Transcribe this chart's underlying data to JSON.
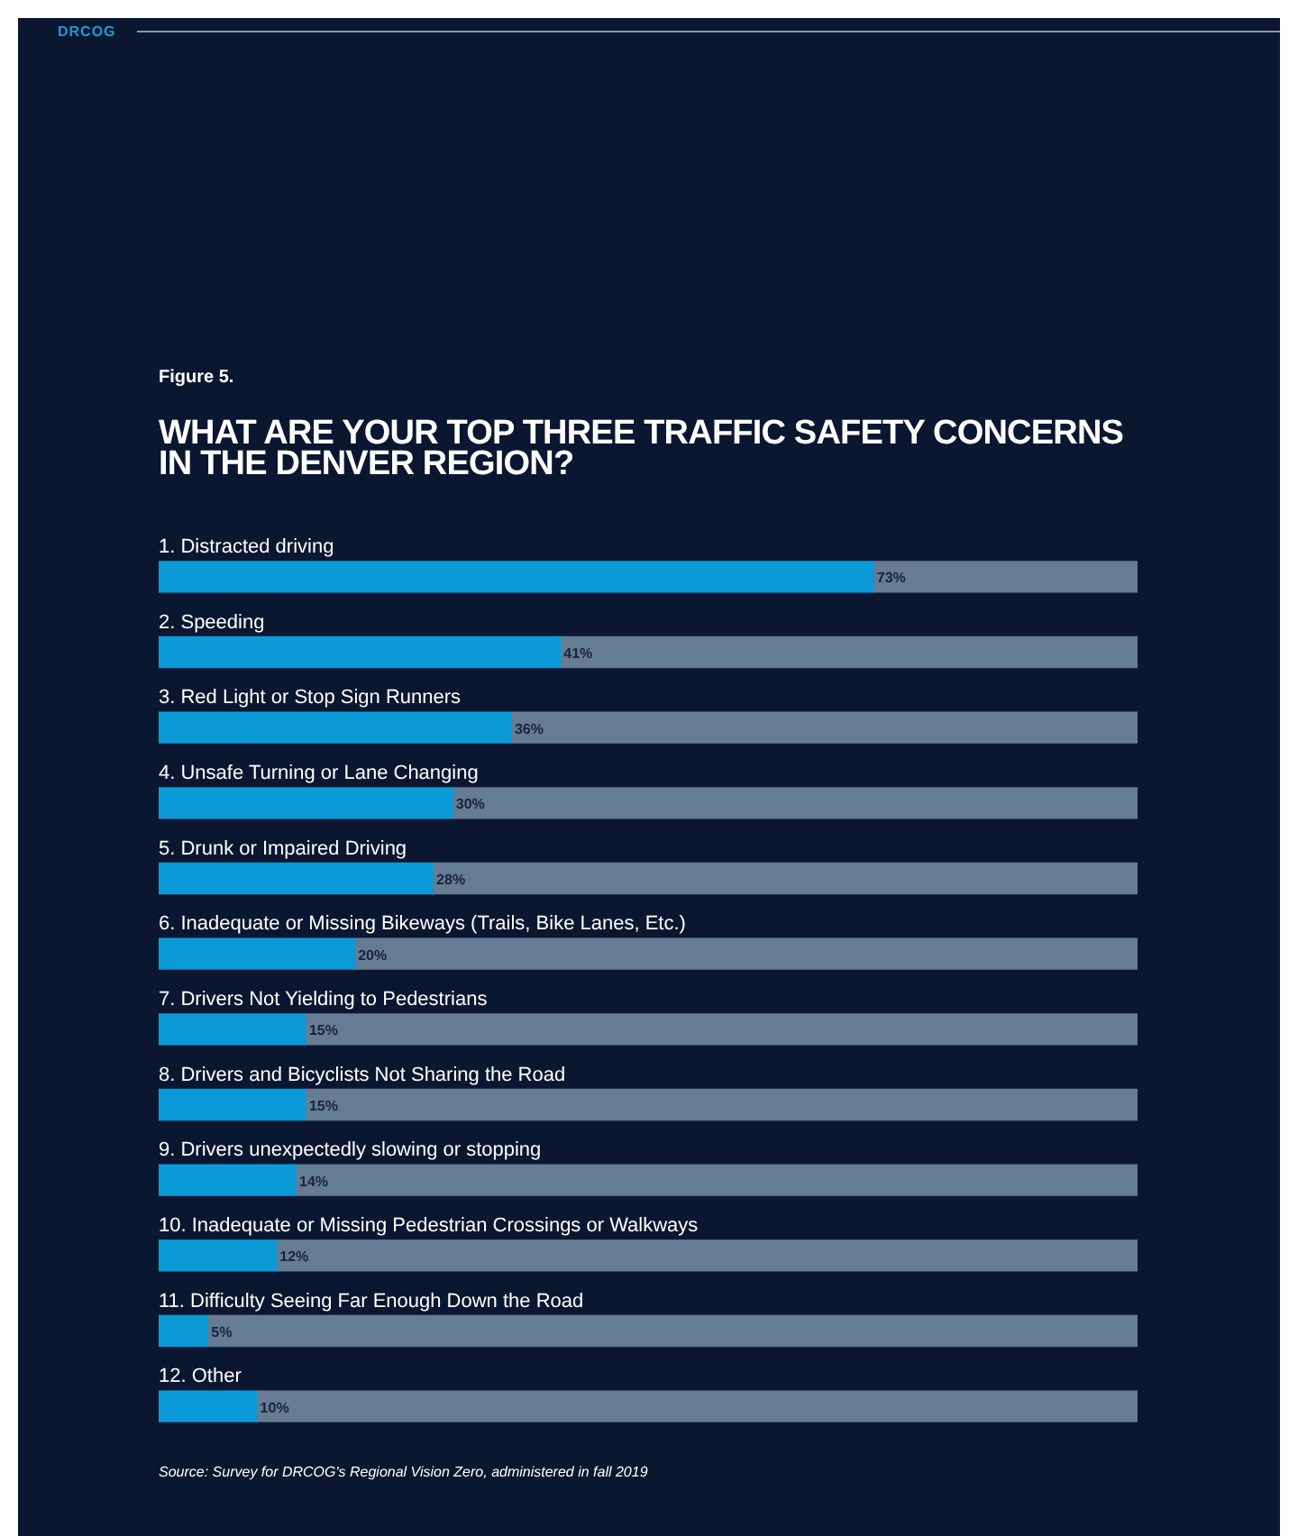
{
  "chart_data": {
    "type": "bar",
    "orientation": "horizontal",
    "stacked": true,
    "title": "WHAT ARE YOUR TOP THREE TRAFFIC SAFETY CONCERNS IN THE DENVER REGION?",
    "subtitle": "Figure 5.",
    "categories": [
      "1. Distracted driving",
      "2. Speeding",
      "3. Red Light or Stop Sign Runners",
      "4. Unsafe Turning or Lane Changing",
      "5. Drunk or Impaired Driving",
      "6. Inadequate or Missing Bikeways (Trails, Bike Lanes, Etc.)",
      "7. Drivers Not Yielding to Pedestrians",
      "8. Drivers and Bicyclists Not Sharing the Road",
      "9. Drivers unexpectedly slowing or stopping",
      "10. Inadequate or Missing Pedestrian Crossings or Walkways",
      "11. Difficulty Seeing Far Enough Down the Road",
      "12. Other"
    ],
    "series": [
      {
        "color": "#0a9ad8",
        "values": [
          73,
          41,
          36,
          30,
          28,
          20,
          15,
          15,
          14,
          12,
          5,
          10
        ],
        "value_labels": [
          "73%",
          "41%",
          "36%",
          "30%",
          "28%",
          "20%",
          "15%",
          "15%",
          "14%",
          "12%",
          "5%",
          "10%"
        ]
      },
      {
        "color": "#667b94",
        "values": [
          27,
          59,
          64,
          70,
          72,
          80,
          85,
          85,
          86,
          88,
          95,
          90
        ]
      }
    ],
    "xlim": [
      0,
      100
    ],
    "tick_labels": false,
    "annotations": [
      "DRCOG",
      "Source: Survey for DRCOG's Regional Vision Zero, administered in fall 2019"
    ]
  }
}
